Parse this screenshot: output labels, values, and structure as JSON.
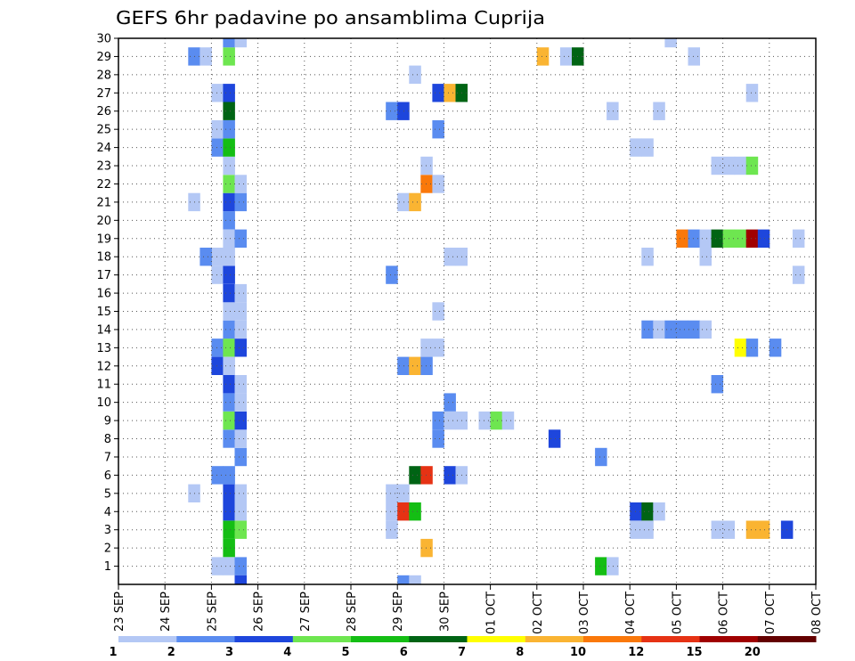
{
  "chart_data": {
    "type": "heatmap",
    "title": "GEFS 6hr padavine po ansamblima Cuprija",
    "y_ticks": [
      "1",
      "2",
      "3",
      "4",
      "5",
      "6",
      "7",
      "8",
      "9",
      "10",
      "11",
      "12",
      "13",
      "14",
      "15",
      "16",
      "17",
      "18",
      "19",
      "20",
      "21",
      "22",
      "23",
      "24",
      "25",
      "26",
      "27",
      "28",
      "29",
      "30"
    ],
    "x_ticks": [
      "23 SEP",
      "24 SEP",
      "25 SEP",
      "26 SEP",
      "27 SEP",
      "28 SEP",
      "29 SEP",
      "30 SEP",
      "01 OCT",
      "02 OCT",
      "03 OCT",
      "04 OCT",
      "05 OCT",
      "06 OCT",
      "07 OCT",
      "08 OCT"
    ],
    "x_range": [
      "23 SEP",
      "08 OCT"
    ],
    "y_range": [
      0,
      30
    ],
    "grid": true,
    "colorbar": {
      "labels": [
        "1",
        "2",
        "3",
        "4",
        "5",
        "6",
        "7",
        "8",
        "10",
        "12",
        "15",
        "20"
      ],
      "colors": [
        "#b4c8f5",
        "#5a8cf0",
        "#1e46dc",
        "#6ee650",
        "#14be14",
        "#006414",
        "#ffff00",
        "#fab432",
        "#fa780a",
        "#e63214",
        "#a00000",
        "#640000"
      ]
    },
    "cells": [
      [
        25,
        1,
        "#b4c8f5"
      ],
      [
        25.25,
        1,
        "#b4c8f5"
      ],
      [
        25.5,
        1,
        "#5a8cf0"
      ],
      [
        25.25,
        2,
        "#14be14"
      ],
      [
        25.25,
        3,
        "#14be14"
      ],
      [
        25.5,
        3,
        "#6ee650"
      ],
      [
        25.25,
        4,
        "#1e46dc"
      ],
      [
        25.5,
        4,
        "#b4c8f5"
      ],
      [
        25.25,
        5,
        "#1e46dc"
      ],
      [
        25.5,
        5,
        "#b4c8f5"
      ],
      [
        25,
        6,
        "#5a8cf0"
      ],
      [
        25.25,
        6,
        "#5a8cf0"
      ],
      [
        25.5,
        7,
        "#5a8cf0"
      ],
      [
        25.25,
        8,
        "#5a8cf0"
      ],
      [
        25.5,
        8,
        "#b4c8f5"
      ],
      [
        25.25,
        9,
        "#6ee650"
      ],
      [
        25.5,
        9,
        "#1e46dc"
      ],
      [
        25.25,
        10,
        "#5a8cf0"
      ],
      [
        25.5,
        10,
        "#b4c8f5"
      ],
      [
        25.25,
        11,
        "#1e46dc"
      ],
      [
        25.5,
        11,
        "#b4c8f5"
      ],
      [
        25,
        12,
        "#1e46dc"
      ],
      [
        25.25,
        12,
        "#b4c8f5"
      ],
      [
        25,
        13,
        "#5a8cf0"
      ],
      [
        25.25,
        13,
        "#6ee650"
      ],
      [
        25.5,
        13,
        "#1e46dc"
      ],
      [
        25.25,
        14,
        "#5a8cf0"
      ],
      [
        25.5,
        14,
        "#b4c8f5"
      ],
      [
        25.25,
        15,
        "#b4c8f5"
      ],
      [
        25.5,
        15,
        "#b4c8f5"
      ],
      [
        25.25,
        16,
        "#1e46dc"
      ],
      [
        25.5,
        16,
        "#b4c8f5"
      ],
      [
        25,
        17,
        "#b4c8f5"
      ],
      [
        25.25,
        17,
        "#1e46dc"
      ],
      [
        25,
        18,
        "#b4c8f5"
      ],
      [
        25.25,
        18,
        "#b4c8f5"
      ],
      [
        25.25,
        19,
        "#b4c8f5"
      ],
      [
        25.5,
        19,
        "#5a8cf0"
      ],
      [
        25.25,
        20,
        "#5a8cf0"
      ],
      [
        25.25,
        21,
        "#1e46dc"
      ],
      [
        25.5,
        21,
        "#5a8cf0"
      ],
      [
        25.25,
        22,
        "#6ee650"
      ],
      [
        25.5,
        22,
        "#b4c8f5"
      ],
      [
        25.25,
        23,
        "#b4c8f5"
      ],
      [
        25,
        24,
        "#5a8cf0"
      ],
      [
        25.25,
        24,
        "#14be14"
      ],
      [
        25,
        25,
        "#b4c8f5"
      ],
      [
        25.25,
        25,
        "#5a8cf0"
      ],
      [
        25.25,
        26,
        "#006414"
      ],
      [
        25,
        27,
        "#b4c8f5"
      ],
      [
        25.25,
        27,
        "#1e46dc"
      ],
      [
        25.25,
        29,
        "#6ee650"
      ],
      [
        25.25,
        30,
        "#5a8cf0"
      ],
      [
        25.5,
        30,
        "#b4c8f5"
      ],
      [
        25.5,
        0,
        "#1e46dc"
      ],
      [
        24.5,
        5,
        "#b4c8f5"
      ],
      [
        24.5,
        21,
        "#b4c8f5"
      ],
      [
        24.5,
        29,
        "#5a8cf0"
      ],
      [
        24.75,
        29,
        "#b4c8f5"
      ],
      [
        24.75,
        18,
        "#5a8cf0"
      ],
      [
        29,
        0,
        "#5a8cf0"
      ],
      [
        29.25,
        0,
        "#b4c8f5"
      ],
      [
        29.5,
        2,
        "#fab432"
      ],
      [
        28.75,
        3,
        "#b4c8f5"
      ],
      [
        28.75,
        4,
        "#b4c8f5"
      ],
      [
        29,
        4,
        "#e63214"
      ],
      [
        29.25,
        4,
        "#14be14"
      ],
      [
        28.75,
        5,
        "#b4c8f5"
      ],
      [
        29,
        5,
        "#b4c8f5"
      ],
      [
        29.25,
        6,
        "#006414"
      ],
      [
        29.5,
        6,
        "#e63214"
      ],
      [
        30,
        6,
        "#1e46dc"
      ],
      [
        30.25,
        6,
        "#b4c8f5"
      ],
      [
        29.75,
        8,
        "#5a8cf0"
      ],
      [
        29.75,
        9,
        "#5a8cf0"
      ],
      [
        30,
        9,
        "#b4c8f5"
      ],
      [
        30.25,
        9,
        "#b4c8f5"
      ],
      [
        30,
        10,
        "#5a8cf0"
      ],
      [
        29,
        12,
        "#5a8cf0"
      ],
      [
        29.25,
        12,
        "#fab432"
      ],
      [
        29.5,
        12,
        "#5a8cf0"
      ],
      [
        29.5,
        13,
        "#b4c8f5"
      ],
      [
        29.75,
        13,
        "#b4c8f5"
      ],
      [
        29.75,
        15,
        "#b4c8f5"
      ],
      [
        28.75,
        17,
        "#5a8cf0"
      ],
      [
        30,
        18,
        "#b4c8f5"
      ],
      [
        30.25,
        18,
        "#b4c8f5"
      ],
      [
        29,
        21,
        "#b4c8f5"
      ],
      [
        29.25,
        21,
        "#fab432"
      ],
      [
        29.5,
        22,
        "#fa780a"
      ],
      [
        29.75,
        22,
        "#b4c8f5"
      ],
      [
        29.5,
        23,
        "#b4c8f5"
      ],
      [
        29.75,
        25,
        "#5a8cf0"
      ],
      [
        28.75,
        26,
        "#5a8cf0"
      ],
      [
        29,
        26,
        "#1e46dc"
      ],
      [
        29.75,
        27,
        "#1e46dc"
      ],
      [
        30,
        27,
        "#fab432"
      ],
      [
        30.25,
        27,
        "#006414"
      ],
      [
        29.25,
        28,
        "#b4c8f5"
      ],
      [
        30.75,
        9,
        "#b4c8f5"
      ],
      [
        31,
        9,
        "#6ee650"
      ],
      [
        31.25,
        9,
        "#b4c8f5"
      ],
      [
        32.25,
        8,
        "#1e46dc"
      ],
      [
        32,
        29,
        "#fab432"
      ],
      [
        32.5,
        29,
        "#b4c8f5"
      ],
      [
        32.75,
        29,
        "#006414"
      ],
      [
        33.25,
        1,
        "#14be14"
      ],
      [
        33.5,
        1,
        "#b4c8f5"
      ],
      [
        33.25,
        7,
        "#5a8cf0"
      ],
      [
        33.5,
        26,
        "#b4c8f5"
      ],
      [
        34,
        3,
        "#b4c8f5"
      ],
      [
        34.25,
        3,
        "#b4c8f5"
      ],
      [
        34,
        4,
        "#1e46dc"
      ],
      [
        34.25,
        4,
        "#006414"
      ],
      [
        34.5,
        4,
        "#b4c8f5"
      ],
      [
        34.25,
        14,
        "#5a8cf0"
      ],
      [
        34.5,
        14,
        "#b4c8f5"
      ],
      [
        34.75,
        14,
        "#5a8cf0"
      ],
      [
        35,
        14,
        "#5a8cf0"
      ],
      [
        35.25,
        14,
        "#5a8cf0"
      ],
      [
        35.5,
        14,
        "#b4c8f5"
      ],
      [
        34.25,
        18,
        "#b4c8f5"
      ],
      [
        34,
        24,
        "#b4c8f5"
      ],
      [
        34.25,
        24,
        "#b4c8f5"
      ],
      [
        34.5,
        26,
        "#b4c8f5"
      ],
      [
        34.75,
        30,
        "#b4c8f5"
      ],
      [
        35,
        19,
        "#fa780a"
      ],
      [
        35.25,
        19,
        "#5a8cf0"
      ],
      [
        35.5,
        19,
        "#b4c8f5"
      ],
      [
        35.75,
        19,
        "#006414"
      ],
      [
        36,
        19,
        "#6ee650"
      ],
      [
        36.25,
        19,
        "#6ee650"
      ],
      [
        36.5,
        19,
        "#a00000"
      ],
      [
        36.75,
        19,
        "#1e46dc"
      ],
      [
        37.5,
        19,
        "#b4c8f5"
      ],
      [
        35.25,
        29,
        "#b4c8f5"
      ],
      [
        35.5,
        18,
        "#b4c8f5"
      ],
      [
        35.75,
        3,
        "#b4c8f5"
      ],
      [
        36,
        3,
        "#b4c8f5"
      ],
      [
        36.5,
        3,
        "#fab432"
      ],
      [
        36.75,
        3,
        "#fab432"
      ],
      [
        37.25,
        3,
        "#1e46dc"
      ],
      [
        35.75,
        11,
        "#5a8cf0"
      ],
      [
        36.25,
        13,
        "#ffff00"
      ],
      [
        36.5,
        13,
        "#5a8cf0"
      ],
      [
        37,
        13,
        "#5a8cf0"
      ],
      [
        35.75,
        23,
        "#b4c8f5"
      ],
      [
        36,
        23,
        "#b4c8f5"
      ],
      [
        36.25,
        23,
        "#b4c8f5"
      ],
      [
        36.5,
        23,
        "#6ee650"
      ],
      [
        36.5,
        27,
        "#b4c8f5"
      ],
      [
        37.5,
        17,
        "#b4c8f5"
      ]
    ]
  }
}
